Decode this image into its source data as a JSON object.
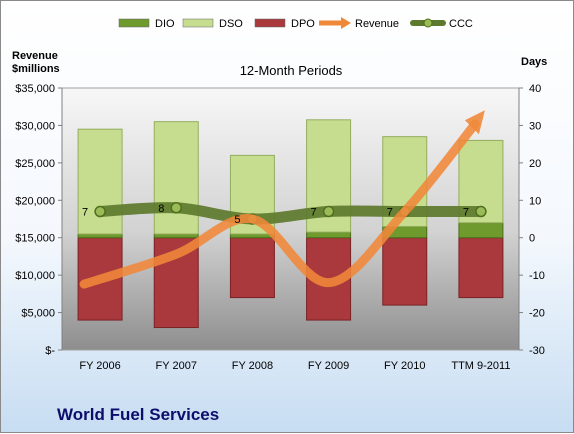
{
  "chart_data": {
    "type": "bar",
    "subtitle": "12-Month Periods",
    "title": "World Fuel Services",
    "y_left_label": [
      "Revenue",
      "$millions"
    ],
    "y_right_label": "Days",
    "categories": [
      "FY 2006",
      "FY 2007",
      "FY 2008",
      "FY 2009",
      "FY 2010",
      "TTM 9-2011"
    ],
    "y_left_ticks": [
      "$-",
      "$5,000",
      "$10,000",
      "$15,000",
      "$20,000",
      "$25,000",
      "$30,000",
      "$35,000"
    ],
    "y_left_range": [
      0,
      35000
    ],
    "y_right_ticks": [
      "-30",
      "-20",
      "-10",
      "0",
      "10",
      "20",
      "30",
      "40"
    ],
    "y_right_range": [
      -30,
      40
    ],
    "series": [
      {
        "name": "DIO",
        "kind": "bar",
        "axis": "days",
        "color": "#6f9a2e",
        "values": [
          1,
          1,
          1,
          1.5,
          3,
          4
        ]
      },
      {
        "name": "DSO",
        "kind": "bar",
        "axis": "days",
        "color": "#c6dd8f",
        "values": [
          28,
          30,
          21,
          30,
          24,
          22
        ]
      },
      {
        "name": "DPO",
        "kind": "bar",
        "axis": "days",
        "color": "#a9393c",
        "values": [
          -22,
          -24,
          -16,
          -22,
          -18,
          -16
        ]
      },
      {
        "name": "Revenue",
        "kind": "line",
        "axis": "revenue",
        "color": "#f0883a",
        "values": [
          8800,
          12800,
          17500,
          9000,
          18500,
          31500
        ]
      },
      {
        "name": "CCC",
        "kind": "line",
        "axis": "days",
        "color": "#5d7a2e",
        "values": [
          7,
          8,
          5,
          7,
          7,
          7
        ]
      }
    ],
    "ccc_labels": [
      "7",
      "8",
      "5",
      "7",
      "7",
      "7"
    ],
    "legend": [
      "DIO",
      "DSO",
      "DPO",
      "Revenue",
      "CCC"
    ],
    "legend_position": "top",
    "grid": false
  }
}
